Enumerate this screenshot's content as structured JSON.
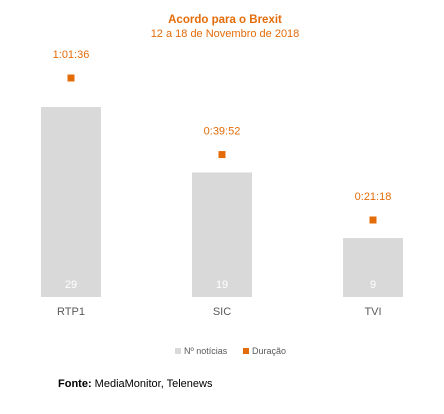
{
  "chart_data": {
    "type": "bar",
    "title": "Acordo para o Brexit",
    "subtitle": "12 a 18 de Novembro de 2018",
    "categories": [
      "RTP1",
      "SIC",
      "TVI"
    ],
    "series": [
      {
        "name": "Nº notícias",
        "kind": "bar",
        "color": "#d9d9d9",
        "values": [
          29,
          19,
          9
        ],
        "labels": [
          "29",
          "19",
          "9"
        ]
      },
      {
        "name": "Duração",
        "kind": "marker",
        "color": "#e36c09",
        "values_seconds": [
          3696,
          2392,
          1278
        ],
        "labels": [
          "1:01:36",
          "0:39:52",
          "0:21:18"
        ]
      }
    ],
    "legend_position": "bottom",
    "grid": false,
    "title_color": "#e36c09",
    "tick_color": "#595959"
  },
  "source": {
    "label": "Fonte:",
    "text": " MediaMonitor, Telenews"
  }
}
